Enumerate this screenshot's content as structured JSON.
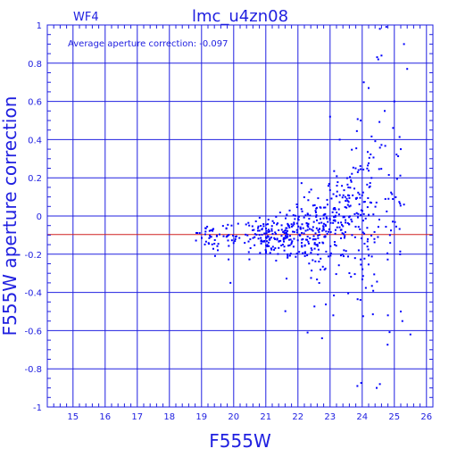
{
  "chart_data": {
    "type": "scatter",
    "title": "lmc_u4zn08",
    "panel_label": "WF4",
    "annotation": "Average aperture correction:  -0.097",
    "xlabel": "F555W",
    "ylabel": "F555W aperture correction",
    "xlim": [
      14.2,
      26.2
    ],
    "ylim": [
      -1,
      1
    ],
    "x_ticks": [
      15,
      16,
      17,
      18,
      19,
      20,
      21,
      22,
      23,
      24,
      25,
      26
    ],
    "y_ticks": [
      -1,
      -0.8,
      -0.6,
      -0.4,
      -0.2,
      0,
      0.2,
      0.4,
      0.6,
      0.8,
      1
    ],
    "grid": true,
    "reference_line": {
      "y": -0.097,
      "color": "#d02020"
    },
    "colors": {
      "axes": "#2020e0",
      "points": "#0000ff",
      "reference_line": "#d02020"
    },
    "point_groups": [
      {
        "x_range": [
          18.5,
          19.0
        ],
        "y_center": -0.1,
        "y_spread": 0.05,
        "count": 4
      },
      {
        "x_range": [
          19.0,
          19.6
        ],
        "y_center": -0.1,
        "y_spread": 0.07,
        "count": 30
      },
      {
        "x_range": [
          19.6,
          20.3
        ],
        "y_center": -0.1,
        "y_spread": 0.06,
        "count": 22
      },
      {
        "x_range": [
          20.3,
          21.0
        ],
        "y_center": -0.1,
        "y_spread": 0.07,
        "count": 45
      },
      {
        "x_range": [
          21.0,
          21.6
        ],
        "y_center": -0.1,
        "y_spread": 0.1,
        "count": 70
      },
      {
        "x_range": [
          21.6,
          22.3
        ],
        "y_center": -0.1,
        "y_spread": 0.13,
        "count": 95
      },
      {
        "x_range": [
          22.3,
          22.9
        ],
        "y_center": -0.08,
        "y_spread": 0.17,
        "count": 100
      },
      {
        "x_range": [
          22.9,
          23.6
        ],
        "y_center": -0.02,
        "y_spread": 0.22,
        "count": 100
      },
      {
        "x_range": [
          23.6,
          24.3
        ],
        "y_center": 0.05,
        "y_spread": 0.35,
        "count": 95
      },
      {
        "x_range": [
          24.3,
          25.2
        ],
        "y_center": 0.05,
        "y_spread": 0.45,
        "count": 55
      }
    ],
    "outliers": [
      {
        "x": 24.55,
        "y": 0.98
      },
      {
        "x": 24.75,
        "y": 0.99
      },
      {
        "x": 25.3,
        "y": 0.9
      },
      {
        "x": 25.4,
        "y": 0.77
      },
      {
        "x": 24.5,
        "y": 0.82
      },
      {
        "x": 24.6,
        "y": 0.84
      },
      {
        "x": 24.2,
        "y": 0.67
      },
      {
        "x": 24.05,
        "y": 0.7
      },
      {
        "x": 23.95,
        "y": 0.5
      },
      {
        "x": 24.7,
        "y": 0.55
      },
      {
        "x": 25.0,
        "y": 0.6
      },
      {
        "x": 24.45,
        "y": -0.9
      },
      {
        "x": 24.55,
        "y": -0.88
      },
      {
        "x": 23.85,
        "y": -0.89
      },
      {
        "x": 25.5,
        "y": -0.62
      },
      {
        "x": 25.2,
        "y": -0.5
      },
      {
        "x": 25.25,
        "y": -0.55
      },
      {
        "x": 22.3,
        "y": -0.61
      },
      {
        "x": 22.75,
        "y": -0.64
      },
      {
        "x": 23.1,
        "y": -0.52
      },
      {
        "x": 19.9,
        "y": -0.35
      },
      {
        "x": 23.0,
        "y": 0.52
      },
      {
        "x": 23.3,
        "y": 0.4
      },
      {
        "x": 25.2,
        "y": 0.35
      },
      {
        "x": 25.3,
        "y": 0.06
      },
      {
        "x": 24.8,
        "y": -0.52
      }
    ]
  }
}
